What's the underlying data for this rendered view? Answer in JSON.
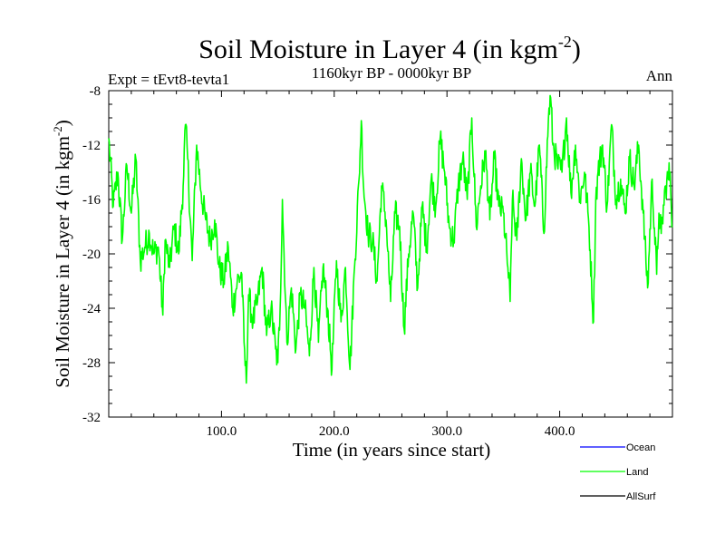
{
  "chart_data": {
    "type": "line",
    "title": "Soil Moisture in Layer 4 (in kgm",
    "title_superscript": "-2",
    "title_close": ")",
    "subtitle": "1160kyr BP - 0000kyr BP",
    "experiment_label": "Expt = tEvt8-tevta1",
    "season_label": "Ann",
    "xlabel": "Time (in years since start)",
    "ylabel": "Soil Moisture in Layer 4 (in kgm",
    "ylabel_superscript": "-2",
    "ylabel_close": ")",
    "xlim": [
      0,
      500
    ],
    "ylim": [
      -32,
      -8
    ],
    "xticks": [
      100,
      200,
      300,
      400
    ],
    "xtick_labels": [
      "100.0",
      "200.0",
      "300.0",
      "400.0"
    ],
    "yticks": [
      -32,
      -28,
      -24,
      -20,
      -16,
      -12,
      -8
    ],
    "ytick_labels": [
      "-32",
      "-28",
      "-24",
      "-20",
      "-16",
      "-12",
      "-8"
    ],
    "legend": [
      {
        "name": "Ocean",
        "color": "#0000ff"
      },
      {
        "name": "Land",
        "color": "#00ff00"
      },
      {
        "name": "AllSurf",
        "color": "#000000"
      }
    ],
    "series": [
      {
        "name": "Land",
        "color": "#00ff00",
        "x": [
          0,
          4,
          8,
          12,
          16,
          20,
          24,
          28,
          32,
          36,
          40,
          44,
          48,
          50,
          54,
          58,
          62,
          66,
          68,
          70,
          74,
          78,
          82,
          86,
          90,
          94,
          98,
          102,
          106,
          110,
          114,
          118,
          120,
          122,
          124,
          128,
          132,
          136,
          140,
          144,
          148,
          150,
          152,
          154,
          158,
          162,
          166,
          170,
          174,
          178,
          182,
          186,
          190,
          194,
          198,
          202,
          206,
          210,
          214,
          218,
          222,
          224,
          226,
          230,
          234,
          238,
          242,
          246,
          250,
          254,
          258,
          262,
          266,
          270,
          274,
          278,
          282,
          286,
          290,
          294,
          298,
          302,
          306,
          310,
          314,
          318,
          322,
          326,
          330,
          334,
          338,
          342,
          346,
          350,
          354,
          356,
          358,
          362,
          366,
          370,
          374,
          378,
          382,
          386,
          390,
          392,
          394,
          398,
          402,
          406,
          410,
          414,
          418,
          422,
          426,
          430,
          432,
          434,
          438,
          442,
          446,
          450,
          454,
          458,
          462,
          466,
          470,
          474,
          478,
          482,
          486,
          488,
          490,
          494,
          498,
          500
        ],
        "values": [
          -11.5,
          -16.5,
          -14,
          -19,
          -13.5,
          -17,
          -13,
          -20.5,
          -19.5,
          -18.5,
          -20,
          -19.5,
          -24.5,
          -19,
          -21,
          -18,
          -20,
          -15,
          -10.5,
          -13,
          -20.5,
          -12,
          -15.5,
          -17.5,
          -19,
          -17.5,
          -21,
          -22,
          -19.5,
          -24,
          -22,
          -21.5,
          -26.5,
          -29.5,
          -23,
          -25,
          -23.5,
          -21,
          -26,
          -24,
          -27,
          -28,
          -24,
          -16,
          -26.5,
          -22.5,
          -27,
          -23,
          -24,
          -27.5,
          -21,
          -26.5,
          -21,
          -24,
          -28.5,
          -20.5,
          -25,
          -21,
          -28.5,
          -21,
          -14.5,
          -10.2,
          -15,
          -18.5,
          -19,
          -22,
          -15,
          -17.5,
          -23.5,
          -17,
          -18,
          -25.5,
          -20,
          -17,
          -22.5,
          -16.5,
          -19.5,
          -14.5,
          -16.5,
          -11.5,
          -14,
          -18,
          -19,
          -15,
          -13,
          -16,
          -10,
          -18,
          -15,
          -12.5,
          -17.5,
          -13,
          -16.5,
          -17,
          -21,
          -23.5,
          -16,
          -19,
          -13,
          -17.5,
          -14,
          -16.5,
          -12,
          -18.5,
          -10,
          -8.5,
          -12,
          -13.5,
          -14,
          -10,
          -15.5,
          -12,
          -16,
          -14,
          -18,
          -25,
          -16,
          -14,
          -12,
          -16.5,
          -10.5,
          -16,
          -14.5,
          -17,
          -13,
          -15,
          -12,
          -17,
          -22.5,
          -14.5,
          -21.5,
          -17,
          -18.5,
          -15,
          -14,
          -18
        ]
      }
    ]
  }
}
